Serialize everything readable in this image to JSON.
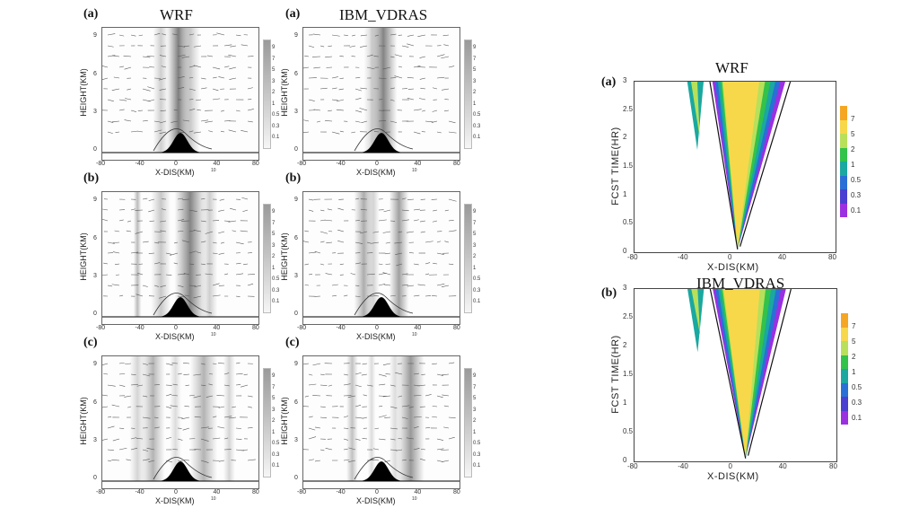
{
  "titles": {
    "wrf_left": "WRF",
    "vdras_left": "IBM_VDRAS",
    "wrf_right": "WRF",
    "vdras_right": "IBM_VDRAS"
  },
  "panel_tags": {
    "a": "(a)",
    "b": "(b)",
    "c": "(c)"
  },
  "vertical_section": {
    "xlabel": "X-DIS(KM)",
    "ylabel": "HEIGHT(KM)",
    "x_ticks": [
      "-80",
      "-40",
      "0",
      "40",
      "80"
    ],
    "y_ticks": [
      "0",
      "3",
      "6",
      "9"
    ],
    "colorbar_ticks": [
      "9",
      "7",
      "5",
      "3",
      "2",
      "1",
      "0.5",
      "0.3",
      "0.1"
    ],
    "colorbar_ticks_wrf_a": [
      "9",
      "7",
      "5",
      "3",
      "2",
      "1",
      "0.5",
      "0.3",
      "0.1"
    ],
    "colorbar_ticks_wrf_b": [
      "9",
      "7",
      "5",
      "3",
      "2",
      "1",
      "0.5",
      "0.3",
      "0.1"
    ],
    "vector_ref": "10"
  },
  "hovmoller": {
    "xlabel": "X-DIS(KM)",
    "ylabel": "FCST TIME(HR)",
    "x_ticks": [
      "-80",
      "-40",
      "0",
      "40",
      "80"
    ],
    "y_ticks": [
      "0",
      "0.5",
      "1",
      "1.5",
      "2",
      "2.5",
      "3"
    ],
    "colorbar_ticks": [
      "7",
      "5",
      "2",
      "1",
      "0.5",
      "0.3",
      "0.1"
    ],
    "colorbar_colors": [
      "#f5a623",
      "#f7d84a",
      "#b8e05a",
      "#33c24a",
      "#1aa8a0",
      "#2a6fd6",
      "#4a3fd1",
      "#9b30e0"
    ]
  },
  "chart_data": [
    {
      "type": "heatmap",
      "panel": "(a) WRF",
      "xlabel": "X-DIS(KM)",
      "ylabel": "HEIGHT(KM)",
      "xlim": [
        -80,
        80
      ],
      "ylim": [
        0,
        9.5
      ]
    },
    {
      "type": "heatmap",
      "panel": "(a) IBM_VDRAS",
      "xlabel": "X-DIS(KM)",
      "ylabel": "HEIGHT(KM)",
      "xlim": [
        -80,
        80
      ],
      "ylim": [
        0,
        9.5
      ]
    },
    {
      "type": "heatmap",
      "panel": "(a) WRF",
      "xlabel": "X-DIS(KM)",
      "ylabel": "FCST TIME(HR)",
      "xlim": [
        -80,
        80
      ],
      "ylim": [
        0,
        3
      ]
    },
    {
      "type": "heatmap",
      "panel": "(b) IBM_VDRAS",
      "xlabel": "X-DIS(KM)",
      "ylabel": "FCST TIME(HR)",
      "xlim": [
        -80,
        80
      ],
      "ylim": [
        0,
        3
      ]
    }
  ]
}
